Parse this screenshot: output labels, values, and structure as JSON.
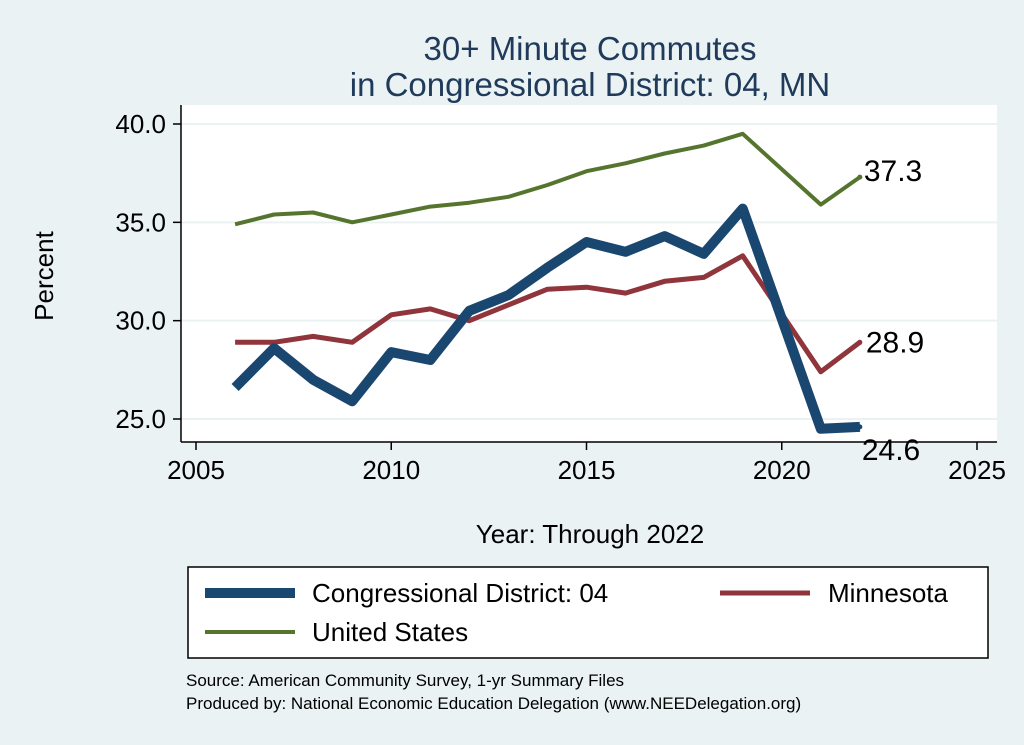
{
  "chart_data": {
    "type": "line",
    "title_line1": "30+ Minute Commutes",
    "title_line2": "in Congressional District:  04, MN",
    "xlabel": "Year: Through 2022",
    "ylabel": "Percent",
    "xlim": [
      2005,
      2025
    ],
    "ylim": [
      25.0,
      40.0
    ],
    "x_ticks": [
      "2005",
      "2010",
      "2015",
      "2020",
      "2025"
    ],
    "y_ticks": [
      "25.0",
      "30.0",
      "35.0",
      "40.0"
    ],
    "x": [
      2006,
      2007,
      2008,
      2009,
      2010,
      2011,
      2012,
      2013,
      2014,
      2015,
      2016,
      2017,
      2018,
      2019,
      2021,
      2022
    ],
    "series": [
      {
        "name": "Congressional District:  04",
        "color": "#1a476f",
        "values": [
          26.6,
          28.6,
          27.0,
          25.9,
          28.4,
          28.0,
          30.5,
          31.3,
          32.7,
          34.0,
          33.5,
          34.3,
          33.4,
          35.7,
          24.5,
          24.6
        ],
        "end_label": "24.6"
      },
      {
        "name": "Minnesota",
        "color": "#90353b",
        "values": [
          28.9,
          28.9,
          29.2,
          28.9,
          30.3,
          30.6,
          30.0,
          30.8,
          31.6,
          31.7,
          31.4,
          32.0,
          32.2,
          33.3,
          27.4,
          28.9
        ],
        "end_label": "28.9"
      },
      {
        "name": "United States",
        "color": "#55752f",
        "values": [
          34.9,
          35.4,
          35.5,
          35.0,
          35.4,
          35.8,
          36.0,
          36.3,
          36.9,
          37.6,
          38.0,
          38.5,
          38.9,
          39.5,
          35.9,
          37.3
        ],
        "end_label": "37.3"
      }
    ],
    "grid": true,
    "legend_position": "bottom"
  },
  "source_note": "Source: American Community Survey, 1-yr Summary Files",
  "produced_note": "Produced by: National Economic Education Delegation (www.NEEDelegation.org)"
}
